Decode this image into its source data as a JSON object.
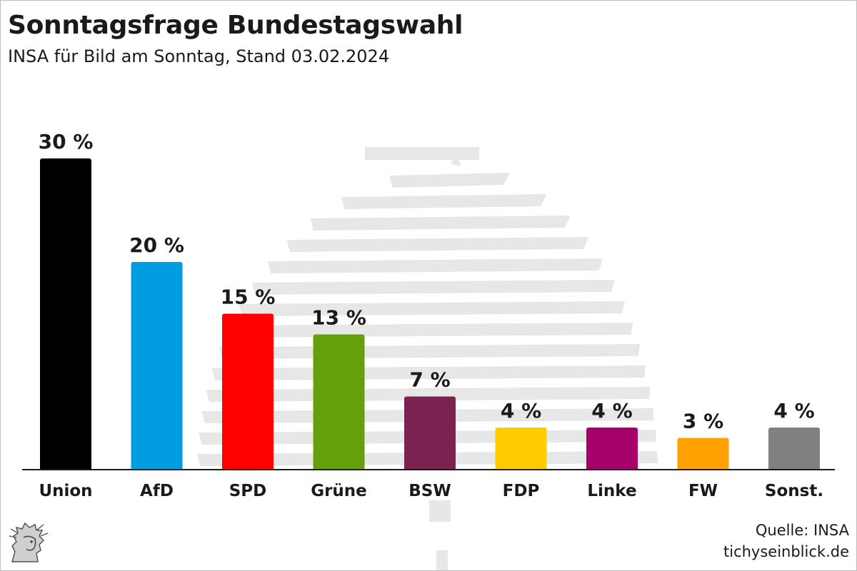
{
  "header": {
    "title": "Sonntagsfrage Bundestagswahl",
    "subtitle": "INSA für Bild am Sonntag, Stand 03.02.2024"
  },
  "footer": {
    "source": "Quelle: INSA",
    "website": "tichyseinblick.de",
    "logo_icon": "mercury-head-logo-icon"
  },
  "chart_data": {
    "type": "bar",
    "title": "Sonntagsfrage Bundestagswahl",
    "subtitle": "INSA für Bild am Sonntag, Stand 03.02.2024",
    "categories": [
      "Union",
      "AfD",
      "SPD",
      "Grüne",
      "BSW",
      "FDP",
      "Linke",
      "FW",
      "Sonst."
    ],
    "values": [
      30,
      20,
      15,
      13,
      7,
      4,
      4,
      3,
      4
    ],
    "value_labels": [
      "30 %",
      "20 %",
      "15 %",
      "13 %",
      "7 %",
      "4 %",
      "4 %",
      "3 %",
      "4 %"
    ],
    "colors": [
      "#000000",
      "#009ee0",
      "#ff0000",
      "#64a00a",
      "#7a2250",
      "#ffcc00",
      "#a6006a",
      "#ffa200",
      "#808080"
    ],
    "unit": "%",
    "ylim": [
      0,
      30
    ],
    "grid": false,
    "legend": "none",
    "background_graphic": "reichstag-dome-watermark"
  }
}
